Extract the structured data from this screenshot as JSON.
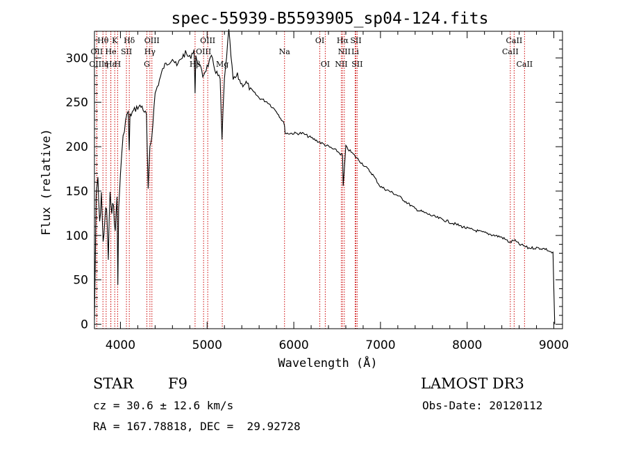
{
  "chart_data": {
    "type": "line",
    "title": "spec-55939-B5593905_sp04-124.fits",
    "xlabel": "Wavelength (Å)",
    "ylabel": "Flux (relative)",
    "xlim": [
      3700,
      9100
    ],
    "ylim": [
      -5,
      330
    ],
    "xticks": [
      4000,
      5000,
      6000,
      7000,
      8000,
      9000
    ],
    "yticks": [
      0,
      50,
      100,
      150,
      200,
      250,
      300
    ],
    "grid": false,
    "series": [
      {
        "name": "flux",
        "x": [
          3700,
          3720,
          3740,
          3760,
          3780,
          3800,
          3820,
          3840,
          3860,
          3880,
          3900,
          3920,
          3940,
          3960,
          3970,
          3980,
          4000,
          4030,
          4060,
          4090,
          4101,
          4110,
          4150,
          4200,
          4250,
          4300,
          4320,
          4340,
          4360,
          4400,
          4450,
          4500,
          4550,
          4600,
          4650,
          4700,
          4750,
          4800,
          4850,
          4861,
          4870,
          4900,
          4950,
          5000,
          5050,
          5100,
          5150,
          5172,
          5183,
          5200,
          5250,
          5300,
          5350,
          5400,
          5450,
          5500,
          5600,
          5700,
          5800,
          5893,
          5900,
          6000,
          6100,
          6200,
          6300,
          6400,
          6500,
          6563,
          6570,
          6600,
          6700,
          6800,
          6900,
          7000,
          7200,
          7400,
          7600,
          7800,
          8000,
          8200,
          8400,
          8498,
          8542,
          8600,
          8662,
          8700,
          8800,
          8900,
          8990,
          9000,
          9010
        ],
        "y": [
          5,
          140,
          165,
          110,
          150,
          90,
          120,
          130,
          75,
          150,
          120,
          140,
          100,
          150,
          40,
          130,
          170,
          210,
          230,
          240,
          195,
          235,
          240,
          245,
          245,
          235,
          150,
          200,
          210,
          260,
          275,
          290,
          295,
          300,
          290,
          300,
          305,
          300,
          310,
          260,
          300,
          295,
          280,
          290,
          300,
          285,
          275,
          205,
          240,
          275,
          330,
          275,
          280,
          270,
          272,
          265,
          255,
          250,
          240,
          225,
          215,
          215,
          215,
          210,
          205,
          200,
          195,
          190,
          155,
          200,
          190,
          180,
          170,
          155,
          145,
          130,
          122,
          115,
          108,
          103,
          98,
          92,
          95,
          90,
          88,
          86,
          86,
          85,
          80,
          40,
          0
        ]
      }
    ],
    "lines": [
      {
        "label": "Hθ",
        "wavelength": 3798,
        "row": 1
      },
      {
        "label": "OII",
        "wavelength": 3727,
        "row": 2
      },
      {
        "label": "OIII",
        "wavelength": 3727,
        "row": 3
      },
      {
        "label": "Hε",
        "wavelength": 3889,
        "row": 3
      },
      {
        "label": "K",
        "wavelength": 3934,
        "row": 1
      },
      {
        "label": "He",
        "wavelength": 3889,
        "row": 2
      },
      {
        "label": "η",
        "wavelength": 3835,
        "row": 3
      },
      {
        "label": "H",
        "wavelength": 3968,
        "row": 3
      },
      {
        "label": "Hδ",
        "wavelength": 4102,
        "row": 1
      },
      {
        "label": "SII",
        "wavelength": 4069,
        "row": 2
      },
      {
        "label": "OIII",
        "wavelength": 4363,
        "row": 1
      },
      {
        "label": "Hγ",
        "wavelength": 4340,
        "row": 2
      },
      {
        "label": "G",
        "wavelength": 4305,
        "row": 3
      },
      {
        "label": "OIII",
        "wavelength": 5007,
        "row": 1
      },
      {
        "label": "OIII",
        "wavelength": 4959,
        "row": 2
      },
      {
        "label": "Hβ",
        "wavelength": 4861,
        "row": 3
      },
      {
        "label": "Mg",
        "wavelength": 5175,
        "row": 3
      },
      {
        "label": "Na",
        "wavelength": 5893,
        "row": 2
      },
      {
        "label": "OI",
        "wavelength": 6300,
        "row": 1
      },
      {
        "label": "OI",
        "wavelength": 6363,
        "row": 3
      },
      {
        "label": "Hα",
        "wavelength": 6563,
        "row": 1
      },
      {
        "label": "SII",
        "wavelength": 6716,
        "row": 1
      },
      {
        "label": "NII",
        "wavelength": 6583,
        "row": 2
      },
      {
        "label": "Li",
        "wavelength": 6708,
        "row": 2
      },
      {
        "label": "NII",
        "wavelength": 6548,
        "row": 3
      },
      {
        "label": "SII",
        "wavelength": 6731,
        "row": 3
      },
      {
        "label": "CaII",
        "wavelength": 8542,
        "row": 1
      },
      {
        "label": "CaII",
        "wavelength": 8498,
        "row": 2
      },
      {
        "label": "CaII",
        "wavelength": 8662,
        "row": 3
      }
    ]
  },
  "info": {
    "object_type": "STAR",
    "subclass": "F9",
    "survey": "LAMOST DR3",
    "cz": "cz = 30.6 ± 12.6 km/s",
    "obs_date": "Obs-Date: 20120112",
    "coords": "RA = 167.78818, DEC =  29.92728"
  },
  "colors": {
    "line_marker": "#cc0000",
    "spectrum": "#000000",
    "axes": "#000000"
  }
}
